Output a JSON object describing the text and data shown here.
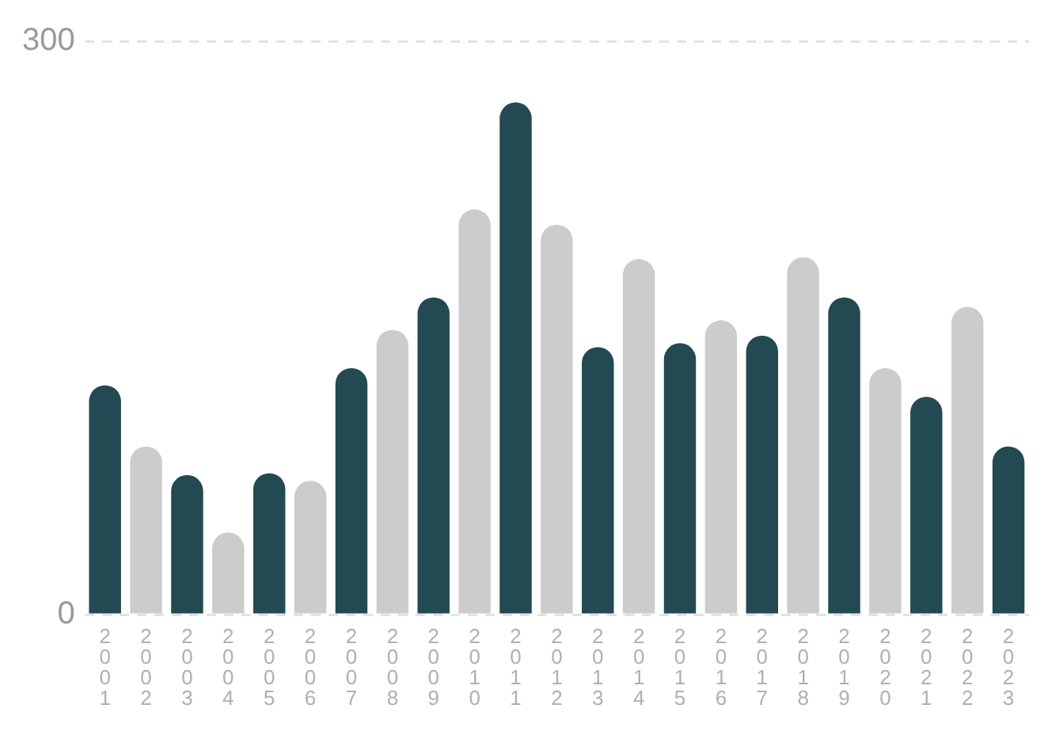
{
  "chart_data": {
    "type": "bar",
    "categories": [
      "2001",
      "2002",
      "2003",
      "2004",
      "2005",
      "2006",
      "2007",
      "2008",
      "2009",
      "2010",
      "2011",
      "2012",
      "2013",
      "2014",
      "2015",
      "2016",
      "2017",
      "2018",
      "2019",
      "2020",
      "2021",
      "2022",
      "2023"
    ],
    "values": [
      120,
      88,
      73,
      43,
      74,
      70,
      129,
      149,
      166,
      212,
      268,
      204,
      140,
      186,
      142,
      154,
      146,
      187,
      166,
      129,
      114,
      161,
      88
    ],
    "colors": [
      "#234a52",
      "#cccccc",
      "#234a52",
      "#cccccc",
      "#234a52",
      "#cccccc",
      "#234a52",
      "#cccccc",
      "#234a52",
      "#cccccc",
      "#234a52",
      "#cccccc",
      "#234a52",
      "#cccccc",
      "#234a52",
      "#cccccc",
      "#234a52",
      "#cccccc",
      "#234a52",
      "#cccccc",
      "#234a52",
      "#cccccc",
      "#234a52"
    ],
    "ylim": [
      0,
      300
    ],
    "yticks": [
      0,
      300
    ],
    "grid": "y",
    "legend": false
  }
}
